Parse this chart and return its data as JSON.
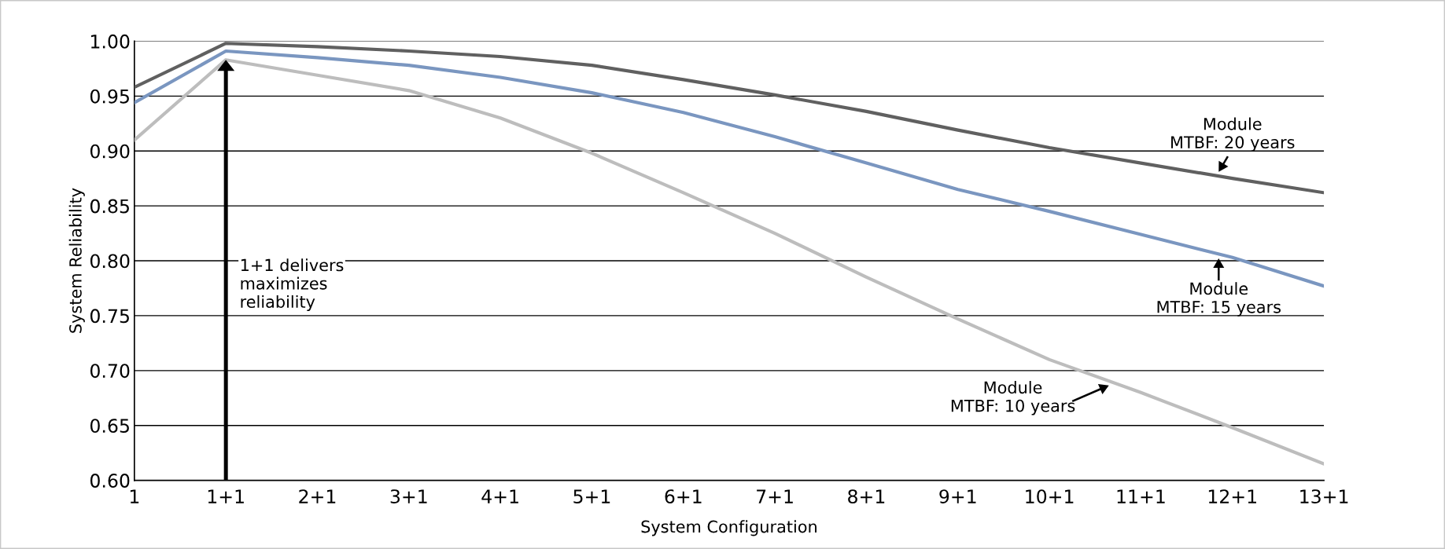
{
  "chart_data": {
    "type": "line",
    "xlabel": "System Configuration",
    "ylabel": "System Reliability",
    "categories": [
      "1",
      "1+1",
      "2+1",
      "3+1",
      "4+1",
      "5+1",
      "6+1",
      "7+1",
      "8+1",
      "9+1",
      "10+1",
      "11+1",
      "12+1",
      "13+1"
    ],
    "series": [
      {
        "name": "Module\nMTBF: 20 years",
        "color": "#606060",
        "values": [
          0.958,
          0.998,
          0.995,
          0.991,
          0.986,
          0.978,
          0.965,
          0.951,
          0.936,
          0.919,
          0.903,
          0.889,
          0.875,
          0.862
        ]
      },
      {
        "name": "Module\nMTBF: 15 years",
        "color": "#7a96c0",
        "values": [
          0.944,
          0.991,
          0.985,
          0.978,
          0.967,
          0.953,
          0.935,
          0.913,
          0.889,
          0.865,
          0.845,
          0.824,
          0.803,
          0.777
        ]
      },
      {
        "name": "Module\nMTBF: 10 years",
        "color": "#bdbdbd",
        "values": [
          0.91,
          0.983,
          0.969,
          0.955,
          0.93,
          0.898,
          0.862,
          0.825,
          0.785,
          0.747,
          0.71,
          0.68,
          0.648,
          0.615
        ]
      }
    ],
    "annotations": [
      "1+1 delivers\nmaximizes\nreliability"
    ],
    "ylim": [
      0.6,
      1.0
    ],
    "yticks": [
      {
        "value": 0.6,
        "label": "0.60"
      },
      {
        "value": 0.65,
        "label": "0.65"
      },
      {
        "value": 0.7,
        "label": "0.70"
      },
      {
        "value": 0.75,
        "label": "0.75"
      },
      {
        "value": 0.8,
        "label": "0.80"
      },
      {
        "value": 0.85,
        "label": "0.85"
      },
      {
        "value": 0.9,
        "label": "0.90"
      },
      {
        "value": 0.95,
        "label": "0.95"
      },
      {
        "value": 1.0,
        "label": "1.00"
      }
    ],
    "grid": "y",
    "legend": false,
    "marker": "none",
    "line_style": "solid"
  }
}
